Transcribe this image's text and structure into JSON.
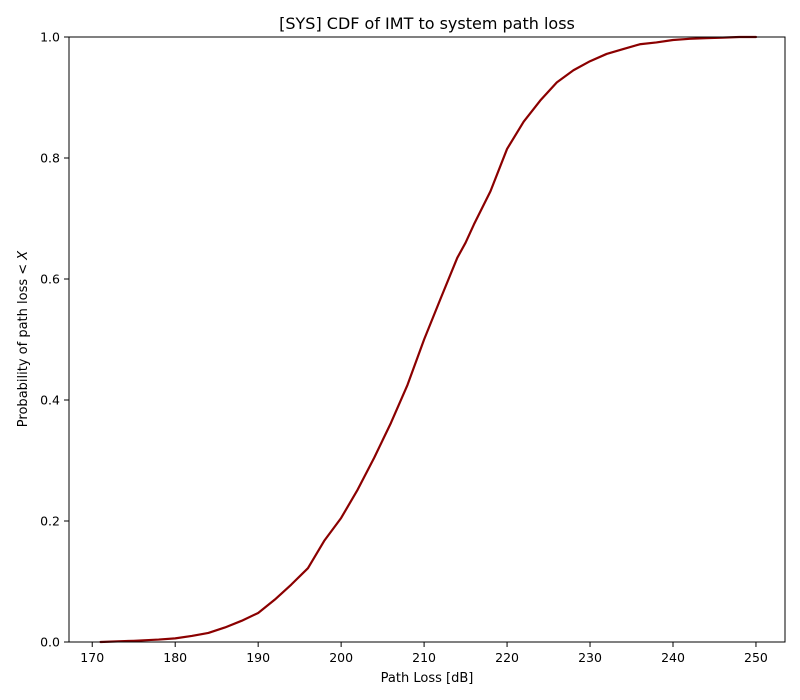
{
  "chart_data": {
    "type": "line",
    "title": "[SYS] CDF of IMT to system path loss",
    "xlabel": "Path Loss [dB]",
    "ylabel_prefix": "Probability of path loss < ",
    "ylabel_var": "X",
    "xlim": [
      167.2,
      253.5
    ],
    "ylim": [
      0,
      1
    ],
    "xticks": [
      170,
      180,
      190,
      200,
      210,
      220,
      230,
      240,
      250
    ],
    "yticks": [
      0.0,
      0.2,
      0.4,
      0.6,
      0.8,
      1.0
    ],
    "xtick_labels": [
      "170",
      "180",
      "190",
      "200",
      "210",
      "220",
      "230",
      "240",
      "250"
    ],
    "ytick_labels": [
      "0.0",
      "0.2",
      "0.4",
      "0.6",
      "0.8",
      "1.0"
    ],
    "grid": false,
    "series": [
      {
        "color": "#8b0000",
        "x": [
          171,
          175,
          178,
          180,
          182,
          184,
          186,
          188,
          190,
          192,
          194,
          196,
          198,
          200,
          202,
          204,
          206,
          208,
          210,
          212,
          214,
          215,
          216,
          218,
          220,
          222,
          224,
          226,
          228,
          230,
          232,
          234,
          236,
          238,
          240,
          242,
          244,
          246,
          248,
          250
        ],
        "y": [
          0.0,
          0.002,
          0.004,
          0.006,
          0.01,
          0.015,
          0.024,
          0.035,
          0.048,
          0.07,
          0.095,
          0.122,
          0.168,
          0.205,
          0.252,
          0.305,
          0.362,
          0.425,
          0.5,
          0.568,
          0.635,
          0.66,
          0.69,
          0.745,
          0.815,
          0.86,
          0.895,
          0.925,
          0.945,
          0.96,
          0.972,
          0.98,
          0.988,
          0.991,
          0.995,
          0.997,
          0.998,
          0.999,
          1.0,
          1.0
        ]
      }
    ]
  }
}
